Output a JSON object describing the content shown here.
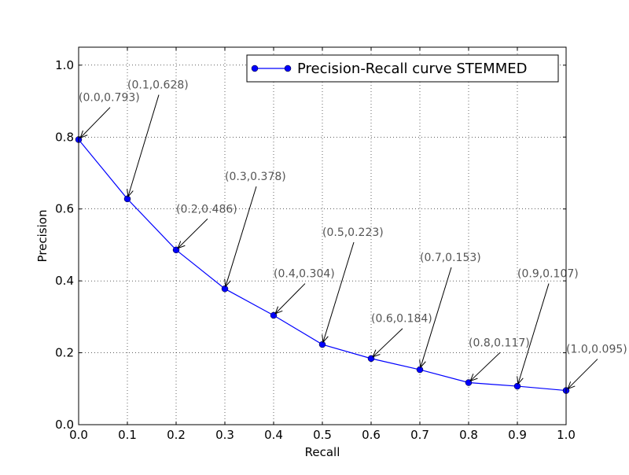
{
  "chart_data": {
    "type": "line",
    "title": "",
    "xlabel": "Recall",
    "ylabel": "Precision",
    "xlim": [
      0.0,
      1.0
    ],
    "ylim": [
      0.0,
      1.05
    ],
    "x_ticks": [
      "0.0",
      "0.1",
      "0.2",
      "0.3",
      "0.4",
      "0.5",
      "0.6",
      "0.7",
      "0.8",
      "0.9",
      "1.0"
    ],
    "y_ticks": [
      "0.0",
      "0.2",
      "0.4",
      "0.6",
      "0.8",
      "1.0"
    ],
    "grid": true,
    "legend_position": "top-right",
    "series": [
      {
        "name": "Precision-Recall curve STEMMED",
        "color": "#0000ff",
        "marker": "circle",
        "x": [
          0.0,
          0.1,
          0.2,
          0.3,
          0.4,
          0.5,
          0.6,
          0.7,
          0.8,
          0.9,
          1.0
        ],
        "y": [
          0.793,
          0.628,
          0.486,
          0.378,
          0.304,
          0.223,
          0.184,
          0.153,
          0.117,
          0.107,
          0.095
        ]
      }
    ],
    "annotations": [
      {
        "text": "(0.0,0.793)",
        "x": 0.0,
        "y": 0.793,
        "text_x": 0.0,
        "text_y": 0.9
      },
      {
        "text": "(0.1,0.628)",
        "x": 0.1,
        "y": 0.628,
        "text_x": 0.1,
        "text_y": 0.935
      },
      {
        "text": "(0.2,0.486)",
        "x": 0.2,
        "y": 0.486,
        "text_x": 0.2,
        "text_y": 0.59
      },
      {
        "text": "(0.3,0.378)",
        "x": 0.3,
        "y": 0.378,
        "text_x": 0.3,
        "text_y": 0.68
      },
      {
        "text": "(0.4,0.304)",
        "x": 0.4,
        "y": 0.304,
        "text_x": 0.4,
        "text_y": 0.41
      },
      {
        "text": "(0.5,0.223)",
        "x": 0.5,
        "y": 0.223,
        "text_x": 0.5,
        "text_y": 0.525
      },
      {
        "text": "(0.6,0.184)",
        "x": 0.6,
        "y": 0.184,
        "text_x": 0.6,
        "text_y": 0.285
      },
      {
        "text": "(0.7,0.153)",
        "x": 0.7,
        "y": 0.153,
        "text_x": 0.7,
        "text_y": 0.455
      },
      {
        "text": "(0.8,0.117)",
        "x": 0.8,
        "y": 0.117,
        "text_x": 0.8,
        "text_y": 0.218
      },
      {
        "text": "(0.9,0.107)",
        "x": 0.9,
        "y": 0.107,
        "text_x": 0.9,
        "text_y": 0.41
      },
      {
        "text": "(1.0,0.095)",
        "x": 1.0,
        "y": 0.095,
        "text_x": 1.0,
        "text_y": 0.2
      }
    ]
  }
}
